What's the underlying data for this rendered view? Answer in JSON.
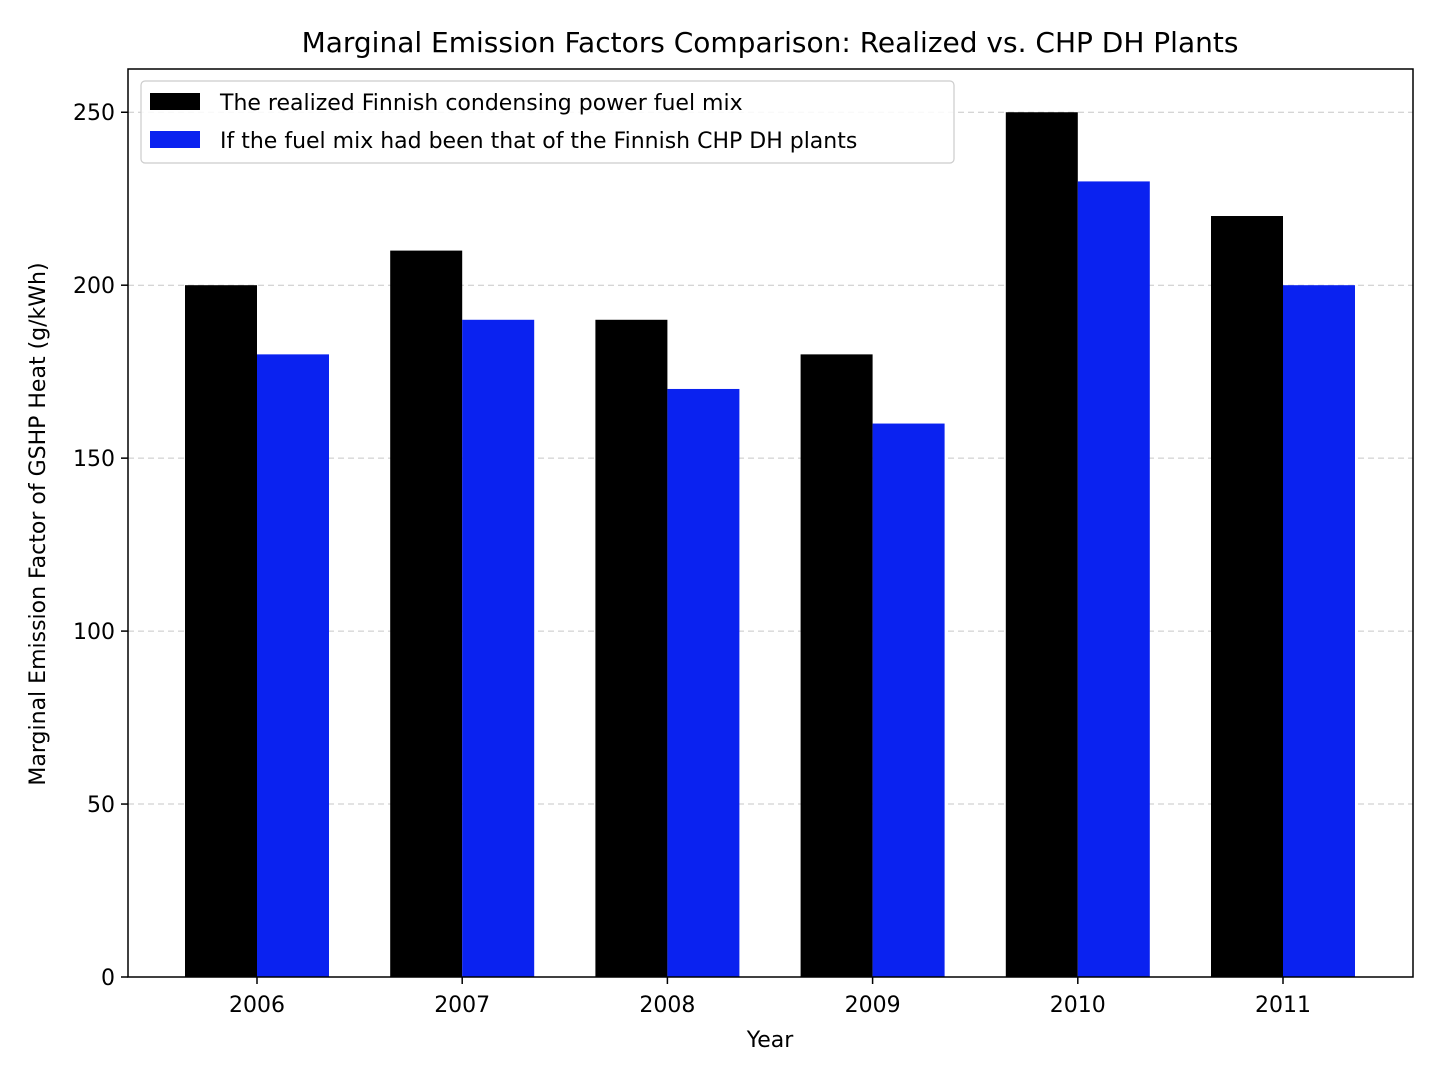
{
  "chart_data": {
    "type": "bar",
    "title": "Marginal Emission Factors Comparison: Realized vs. CHP DH Plants",
    "xlabel": "Year",
    "ylabel": "Marginal Emission Factor of GSHP Heat (g/kWh)",
    "categories": [
      "2006",
      "2007",
      "2008",
      "2009",
      "2010",
      "2011"
    ],
    "series": [
      {
        "name": "The realized Finnish condensing power fuel mix",
        "color": "#000000",
        "values": [
          200,
          210,
          190,
          180,
          250,
          220
        ]
      },
      {
        "name": "If the fuel mix had been that of the Finnish CHP DH plants",
        "color": "#0a22f0",
        "values": [
          180,
          190,
          170,
          160,
          230,
          200
        ]
      }
    ],
    "ylim": [
      0,
      262.5
    ],
    "yticks": [
      0,
      50,
      100,
      150,
      200,
      250
    ],
    "grid": "y-dashed",
    "legend": "top-left"
  }
}
